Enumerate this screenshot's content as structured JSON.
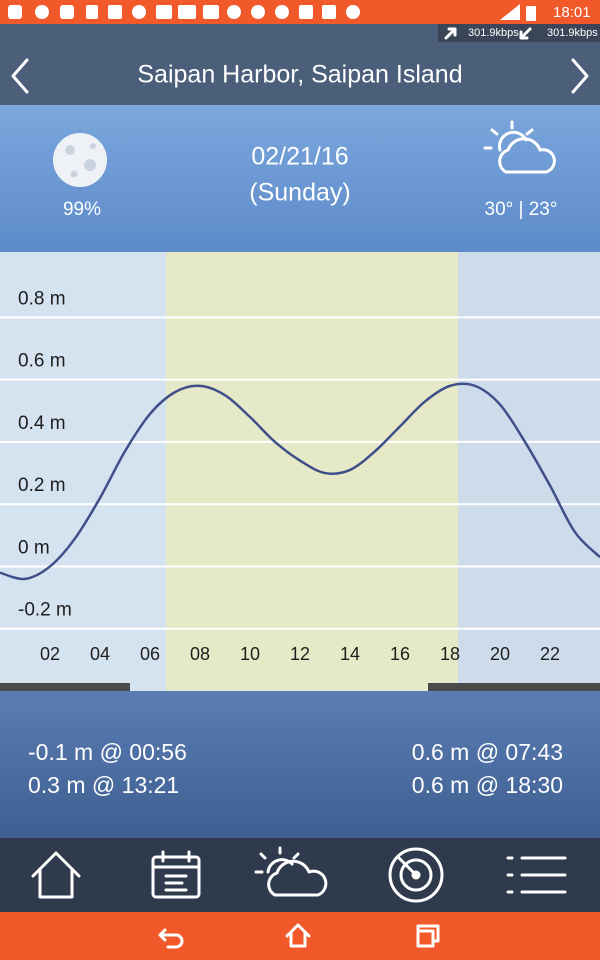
{
  "status_bar": {
    "time": "18:01",
    "upload_speed": "301.9kbps",
    "download_speed": "301.9kbps"
  },
  "header": {
    "title": "Saipan Harbor, Saipan Island"
  },
  "day_info": {
    "moon": "99%",
    "date": "02/21/16",
    "weekday": "(Sunday)",
    "temperature": "30° | 23°"
  },
  "chart_data": {
    "type": "line",
    "x": [
      0,
      1,
      2,
      3,
      4,
      5,
      6,
      7,
      8,
      9,
      10,
      11,
      12,
      13,
      14,
      15,
      16,
      17,
      18,
      19,
      20,
      21,
      22,
      23,
      24
    ],
    "values": [
      -0.02,
      -0.04,
      0.0,
      0.09,
      0.22,
      0.37,
      0.49,
      0.56,
      0.58,
      0.55,
      0.48,
      0.4,
      0.34,
      0.3,
      0.31,
      0.37,
      0.45,
      0.53,
      0.58,
      0.58,
      0.52,
      0.4,
      0.26,
      0.11,
      0.03
    ],
    "color": "#3f4f8a",
    "xlim": [
      0,
      24
    ],
    "ylim": [
      -0.4,
      1.01
    ],
    "xticks": [
      {
        "value": 2,
        "label": "02"
      },
      {
        "value": 4,
        "label": "04"
      },
      {
        "value": 6,
        "label": "06"
      },
      {
        "value": 8,
        "label": "08"
      },
      {
        "value": 10,
        "label": "10"
      },
      {
        "value": 12,
        "label": "12"
      },
      {
        "value": 14,
        "label": "14"
      },
      {
        "value": 16,
        "label": "16"
      },
      {
        "value": 18,
        "label": "18"
      },
      {
        "value": 20,
        "label": "20"
      },
      {
        "value": 22,
        "label": "22"
      }
    ],
    "yticks": [
      {
        "value": 0.8,
        "label": "0.8 m"
      },
      {
        "value": 0.6,
        "label": "0.6 m"
      },
      {
        "value": 0.4,
        "label": "0.4 m"
      },
      {
        "value": 0.2,
        "label": "0.2 m"
      },
      {
        "value": 0,
        "label": "0 m"
      },
      {
        "value": -0.2,
        "label": "-0.2 m"
      }
    ],
    "grid": true,
    "daylight": [
      6.64,
      18.32
    ]
  },
  "tides": {
    "lows": [
      "-0.1 m @ 00:56",
      "0.3 m @ 13:21"
    ],
    "highs": [
      "0.6 m @ 07:43",
      "0.6 m @ 18:30"
    ]
  }
}
